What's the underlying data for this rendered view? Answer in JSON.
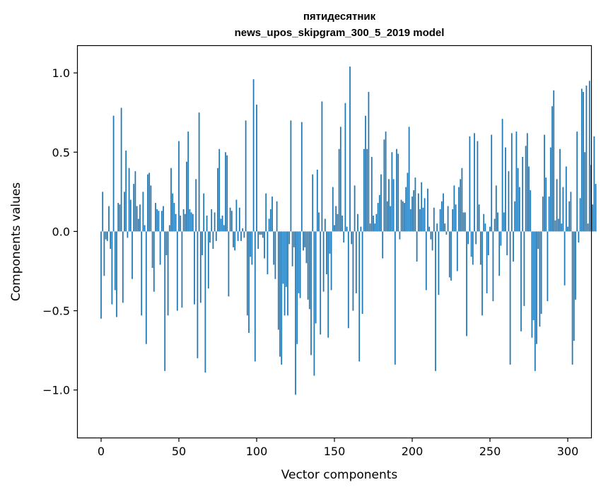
{
  "chart_data": {
    "type": "bar",
    "title": "пятидесятник",
    "subtitle": "news_upos_skipgram_300_5_2019 model",
    "xlabel": "Vector components",
    "ylabel": "Components values",
    "xlim": [
      -15,
      315
    ],
    "ylim": [
      -1.3,
      1.17
    ],
    "xticks": [
      0,
      50,
      100,
      150,
      200,
      250,
      300
    ],
    "xtick_labels": [
      "0",
      "50",
      "100",
      "150",
      "200",
      "250",
      "300"
    ],
    "yticks": [
      -1.0,
      -0.5,
      0.0,
      0.5,
      1.0
    ],
    "ytick_labels": [
      "−1.0",
      "−0.5",
      "0.0",
      "0.5",
      "1.0"
    ],
    "bar_color": "#1f77b4",
    "grid": false,
    "legend": "none",
    "series": [
      {
        "values": [
          -0.55,
          0.25,
          -0.28,
          -0.05,
          -0.06,
          0.16,
          -0.11,
          -0.46,
          0.73,
          -0.37,
          -0.54,
          0.18,
          0.17,
          0.78,
          -0.45,
          0.25,
          0.51,
          -0.04,
          0.4,
          0.2,
          -0.3,
          0.3,
          0.38,
          0.16,
          0.08,
          0.17,
          -0.53,
          0.25,
          0.04,
          -0.71,
          0.36,
          0.37,
          0.29,
          -0.23,
          -0.38,
          0.18,
          0.14,
          0.13,
          -0.21,
          0.13,
          0.16,
          -0.88,
          -0.15,
          -0.53,
          0.04,
          0.4,
          0.24,
          0.18,
          0.11,
          -0.5,
          0.57,
          0.1,
          -0.48,
          0.14,
          0.11,
          0.44,
          0.63,
          0.14,
          0.12,
          0.11,
          -0.46,
          0.33,
          -0.8,
          0.75,
          -0.45,
          -0.15,
          0.24,
          -0.89,
          0.1,
          -0.36,
          -0.07,
          0.14,
          -0.11,
          0.12,
          -0.06,
          0.4,
          0.52,
          0.08,
          0.1,
          0.04,
          0.5,
          0.48,
          -0.41,
          0.15,
          0.13,
          -0.1,
          -0.12,
          0.2,
          -0.06,
          0.15,
          -0.06,
          0.02,
          -0.04,
          0.7,
          -0.53,
          -0.64,
          -0.16,
          -0.21,
          0.96,
          -0.82,
          0.8,
          -0.11,
          -0.02,
          -0.02,
          -0.04,
          -0.17,
          0.24,
          -0.27,
          0.08,
          0.14,
          0.22,
          -0.21,
          -0.3,
          0.19,
          -0.62,
          -0.79,
          -0.84,
          -0.33,
          -0.53,
          -0.35,
          -0.53,
          -0.08,
          0.7,
          -0.22,
          -0.1,
          -1.03,
          -0.71,
          -0.39,
          -0.42,
          0.69,
          -0.12,
          -0.1,
          -0.2,
          -0.43,
          -0.49,
          -0.78,
          0.36,
          -0.91,
          -0.58,
          0.39,
          0.12,
          -0.65,
          0.82,
          -0.38,
          0.08,
          -0.27,
          -0.67,
          -0.14,
          -0.37,
          0.28,
          0.04,
          0.16,
          0.11,
          0.52,
          0.66,
          0.1,
          -0.07,
          0.81,
          0.03,
          -0.61,
          1.04,
          -0.08,
          -0.5,
          0.29,
          -0.39,
          0.11,
          -0.82,
          0.03,
          -0.52,
          0.52,
          0.73,
          0.52,
          0.88,
          0.05,
          0.47,
          0.1,
          0.05,
          0.11,
          0.18,
          0.23,
          0.36,
          -0.17,
          0.58,
          0.63,
          0.19,
          0.33,
          0.16,
          0.5,
          0.33,
          -0.84,
          0.52,
          0.49,
          -0.05,
          0.2,
          0.19,
          0.18,
          0.28,
          0.37,
          0.66,
          0.14,
          0.22,
          0.26,
          0.34,
          -0.19,
          0.24,
          0.14,
          0.31,
          0.15,
          0.21,
          -0.37,
          0.27,
          0.03,
          -0.05,
          -0.12,
          0.15,
          -0.88,
          0.05,
          -0.4,
          0.14,
          0.19,
          0.24,
          0.05,
          -0.02,
          0.16,
          -0.29,
          -0.31,
          0.14,
          0.29,
          0.17,
          -0.25,
          0.28,
          0.33,
          0.4,
          0.12,
          0.12,
          -0.66,
          -0.08,
          0.6,
          -0.16,
          -0.21,
          0.62,
          -0.08,
          0.57,
          0.17,
          -0.21,
          -0.53,
          0.11,
          0.05,
          -0.39,
          -0.15,
          0.03,
          0.61,
          -0.44,
          0.08,
          0.29,
          0.12,
          -0.28,
          -0.09,
          0.71,
          0.12,
          0.53,
          -0.15,
          0.38,
          -0.84,
          0.62,
          -0.19,
          0.19,
          0.63,
          0.4,
          0.28,
          -0.63,
          0.47,
          -0.47,
          0.54,
          0.62,
          0.41,
          0.26,
          -0.67,
          -0.56,
          -0.88,
          -0.71,
          -0.11,
          -0.6,
          -0.52,
          0.22,
          0.61,
          0.34,
          -0.44,
          0.22,
          0.53,
          0.79,
          0.89,
          0.07,
          0.33,
          0.08,
          0.52,
          0.05,
          0.28,
          -0.34,
          0.41,
          0.03,
          0.19,
          0.25,
          -0.84,
          -0.69,
          -0.43,
          0.63,
          -0.07,
          0.21,
          0.9,
          0.88,
          0.5,
          0.92,
          0.05,
          0.95,
          0.42,
          0.17,
          0.6,
          0.3
        ]
      }
    ]
  }
}
